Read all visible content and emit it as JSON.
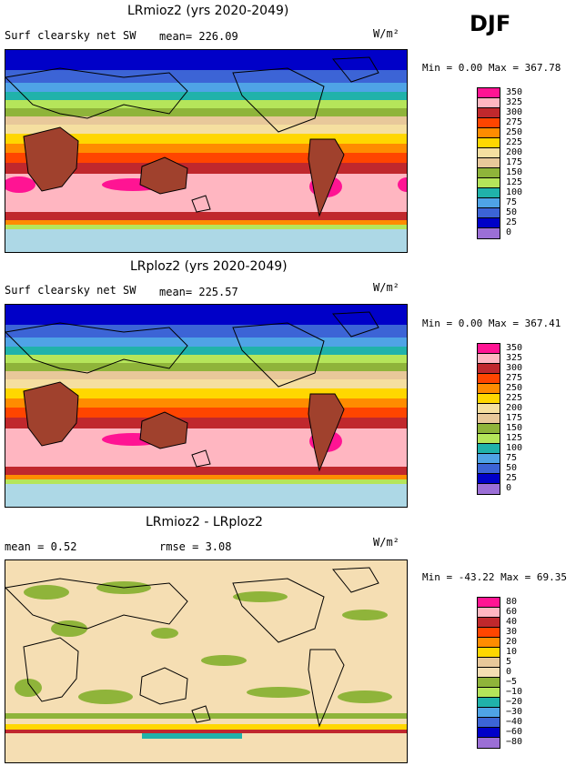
{
  "season": "DJF",
  "panels": [
    {
      "title": "LRmioz2 (yrs 2020-2049)",
      "variable": "Surf clearsky net SW",
      "stat1": "mean= 226.09",
      "stat2": "",
      "units": "W/m²",
      "minmax": "Min =    0.00 Max = 367.78",
      "levels": [
        "350",
        "325",
        "300",
        "275",
        "250",
        "225",
        "200",
        "175",
        "150",
        "125",
        "100",
        "75",
        "50",
        "25",
        "0"
      ],
      "colors": [
        "#ff1493",
        "#ffb6c1",
        "#c0282d",
        "#ff4500",
        "#ff8c00",
        "#ffd700",
        "#f5dfa0",
        "#e8c89a",
        "#8fb43a",
        "#b5e55a",
        "#20b2aa",
        "#4fa3e6",
        "#3c64d6",
        "#0000c8",
        "#9b6fd6"
      ]
    },
    {
      "title": "LRploz2 (yrs 2020-2049)",
      "variable": "Surf clearsky net SW",
      "stat1": "mean= 225.57",
      "stat2": "",
      "units": "W/m²",
      "minmax": "Min =    0.00 Max = 367.41",
      "levels": [
        "350",
        "325",
        "300",
        "275",
        "250",
        "225",
        "200",
        "175",
        "150",
        "125",
        "100",
        "75",
        "50",
        "25",
        "0"
      ],
      "colors": [
        "#ff1493",
        "#ffb6c1",
        "#c0282d",
        "#ff4500",
        "#ff8c00",
        "#ffd700",
        "#f5dfa0",
        "#e8c89a",
        "#8fb43a",
        "#b5e55a",
        "#20b2aa",
        "#4fa3e6",
        "#3c64d6",
        "#0000c8",
        "#9b6fd6"
      ]
    },
    {
      "title": "LRmioz2 - LRploz2",
      "variable": "",
      "stat1": "mean =   0.52",
      "stat2": "rmse =   3.08",
      "units": "W/m²",
      "minmax": "Min = -43.22 Max =  69.35",
      "levels": [
        "80",
        "60",
        "40",
        "30",
        "20",
        "10",
        "5",
        "0",
        "−5",
        "−10",
        "−20",
        "−30",
        "−40",
        "−60",
        "−80"
      ],
      "colors": [
        "#ff1493",
        "#ffb6c1",
        "#c0282d",
        "#ff4500",
        "#ff8c00",
        "#ffd700",
        "#e8c89a",
        "#f5deb3",
        "#8fb43a",
        "#b5e55a",
        "#20b2aa",
        "#4fa3e6",
        "#3c64d6",
        "#0000c8",
        "#9b6fd6"
      ]
    }
  ]
}
